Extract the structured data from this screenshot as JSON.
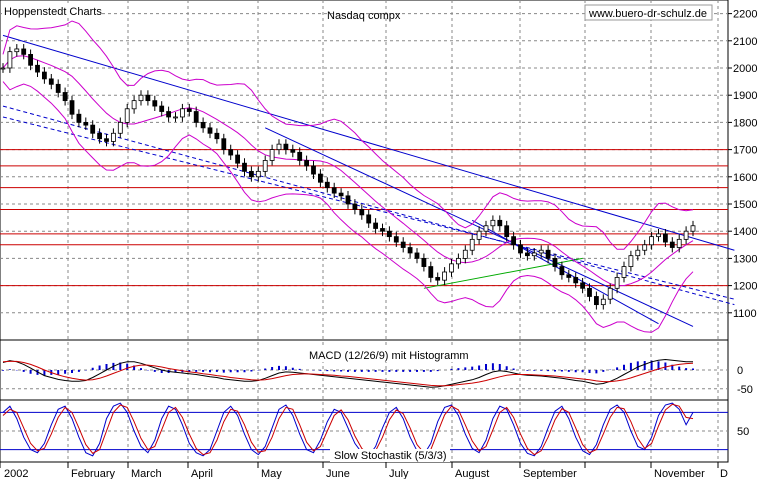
{
  "header": {
    "source": "Hoppenstedt Charts",
    "title": "Nasdaq compx",
    "website": "www.buero-dr-schulz.de"
  },
  "colors": {
    "price": "#000000",
    "bollinger": "#cc00cc",
    "trendline": "#0000cc",
    "channel_dashed": "#0000cc",
    "horizontal_levels": "#cc0000",
    "green_line": "#00aa00",
    "macd": "#000000",
    "signal": "#cc0000",
    "histogram": "#0000cc",
    "stoch_k": "#0000cc",
    "stoch_d": "#cc0000",
    "grid": "#888888"
  },
  "chart_data": [
    {
      "type": "line",
      "name": "price-panel",
      "title": "Nasdaq compx",
      "x_labels": [
        "2002",
        "February",
        "March",
        "April",
        "May",
        "June",
        "July",
        "August",
        "September",
        "November",
        "D"
      ],
      "ylim": [
        1000,
        2250
      ],
      "yticks": [
        1100,
        1200,
        1300,
        1400,
        1500,
        1600,
        1700,
        1800,
        1900,
        2000,
        2100,
        2200
      ],
      "resistance_levels": [
        1200,
        1350,
        1390,
        1480,
        1560,
        1640,
        1700
      ],
      "series": [
        {
          "values": [
            2000,
            2060,
            2070,
            2050,
            2010,
            1985,
            1960,
            1940,
            1910,
            1880,
            1830,
            1800,
            1790,
            1760,
            1740,
            1730,
            1760,
            1800,
            1850,
            1880,
            1900,
            1880,
            1860,
            1840,
            1820,
            1820,
            1850,
            1840,
            1800,
            1780,
            1760,
            1740,
            1700,
            1680,
            1650,
            1620,
            1600,
            1620,
            1660,
            1700,
            1720,
            1700,
            1690,
            1660,
            1640,
            1610,
            1580,
            1560,
            1540,
            1530,
            1500,
            1480,
            1460,
            1430,
            1410,
            1400,
            1380,
            1360,
            1340,
            1320,
            1300,
            1270,
            1230,
            1220,
            1250,
            1280,
            1300,
            1330,
            1370,
            1400,
            1420,
            1440,
            1420,
            1380,
            1350,
            1320,
            1310,
            1320,
            1330,
            1300,
            1270,
            1240,
            1230,
            1210,
            1190,
            1160,
            1130,
            1150,
            1190,
            1230,
            1270,
            1310,
            1330,
            1350,
            1380,
            1390,
            1360,
            1340,
            1370,
            1400,
            1420
          ]
        }
      ]
    },
    {
      "type": "bar",
      "name": "macd-panel",
      "title": "MACD (12/26/9) mit Histogramm",
      "ylim": [
        -80,
        80
      ],
      "yticks": [
        0,
        -50
      ],
      "series": [
        {
          "values": [
            20,
            25,
            22,
            15,
            5,
            -5,
            -15,
            -20,
            -25,
            -28,
            -30,
            -30,
            -28,
            -20,
            -10,
            0,
            10,
            18,
            22,
            22,
            18,
            12,
            6,
            0,
            -4,
            -6,
            -8,
            -10,
            -12,
            -15,
            -18,
            -20,
            -24,
            -26,
            -28,
            -30,
            -30,
            -28,
            -22,
            -15,
            -8,
            -5,
            -6,
            -8,
            -10,
            -12,
            -14,
            -16,
            -18,
            -20,
            -22,
            -24,
            -26,
            -28,
            -30,
            -32,
            -34,
            -36,
            -38,
            -40,
            -42,
            -44,
            -46,
            -45,
            -42,
            -38,
            -34,
            -30,
            -26,
            -20,
            -12,
            -5,
            -2,
            -4,
            -8,
            -12,
            -14,
            -15,
            -16,
            -18,
            -20,
            -22,
            -25,
            -28,
            -30,
            -34,
            -38,
            -36,
            -30,
            -22,
            -12,
            -2,
            8,
            15,
            22,
            26,
            28,
            26,
            24,
            22,
            22
          ]
        },
        {
          "values": [
            22,
            23,
            23,
            20,
            15,
            8,
            0,
            -7,
            -13,
            -18,
            -22,
            -25,
            -27,
            -26,
            -22,
            -16,
            -9,
            -2,
            5,
            10,
            13,
            13,
            11,
            8,
            4,
            1,
            -2,
            -5,
            -7,
            -10,
            -12,
            -15,
            -17,
            -20,
            -22,
            -24,
            -26,
            -27,
            -26,
            -23,
            -19,
            -15,
            -12,
            -11,
            -10,
            -11,
            -12,
            -13,
            -14,
            -16,
            -17,
            -19,
            -21,
            -23,
            -25,
            -27,
            -29,
            -31,
            -33,
            -35,
            -37,
            -39,
            -41,
            -42,
            -42,
            -41,
            -39,
            -37,
            -35,
            -32,
            -28,
            -23,
            -18,
            -14,
            -12,
            -12,
            -12,
            -13,
            -14,
            -15,
            -16,
            -18,
            -20,
            -22,
            -24,
            -26,
            -29,
            -31,
            -31,
            -29,
            -26,
            -21,
            -15,
            -9,
            -3,
            3,
            8,
            12,
            15,
            17,
            18
          ]
        },
        {
          "values": [
            -2,
            2,
            -1,
            -5,
            -10,
            -13,
            -15,
            -13,
            -12,
            -10,
            -8,
            -5,
            -1,
            6,
            12,
            16,
            19,
            20,
            17,
            12,
            5,
            -1,
            -5,
            -8,
            -8,
            -7,
            -6,
            -5,
            -5,
            -5,
            -6,
            -5,
            -7,
            -6,
            -6,
            -6,
            -4,
            -1,
            4,
            8,
            11,
            10,
            6,
            3,
            0,
            -1,
            -2,
            -3,
            -4,
            -4,
            -5,
            -5,
            -5,
            -5,
            -5,
            -5,
            -5,
            -5,
            -5,
            -5,
            -5,
            -5,
            -5,
            -3,
            0,
            3,
            5,
            7,
            9,
            12,
            16,
            18,
            16,
            10,
            4,
            0,
            -2,
            -2,
            -2,
            -3,
            -4,
            -4,
            -5,
            -6,
            -6,
            -8,
            -9,
            -5,
            1,
            7,
            14,
            19,
            23,
            24,
            25,
            23,
            20,
            14,
            9,
            5,
            4
          ]
        }
      ]
    },
    {
      "type": "line",
      "name": "stochastic-panel",
      "title": "Slow Stochastik (5/3/3)",
      "ylim": [
        0,
        100
      ],
      "yticks": [
        50
      ],
      "levels": [
        80,
        20
      ],
      "series": [
        {
          "values": [
            80,
            90,
            70,
            40,
            20,
            15,
            30,
            60,
            85,
            90,
            70,
            40,
            15,
            10,
            30,
            70,
            90,
            95,
            80,
            50,
            25,
            15,
            35,
            70,
            90,
            85,
            60,
            30,
            15,
            10,
            20,
            50,
            80,
            90,
            75,
            45,
            20,
            12,
            25,
            55,
            85,
            92,
            75,
            45,
            20,
            15,
            35,
            65,
            85,
            80,
            55,
            30,
            15,
            10,
            25,
            55,
            80,
            88,
            70,
            40,
            18,
            12,
            30,
            65,
            88,
            92,
            75,
            45,
            22,
            15,
            35,
            70,
            90,
            85,
            60,
            30,
            14,
            10,
            25,
            55,
            82,
            90,
            70,
            40,
            18,
            12,
            28,
            60,
            85,
            92,
            80,
            50,
            25,
            20,
            40,
            75,
            92,
            95,
            85,
            60,
            80
          ]
        },
        {
          "values": [
            75,
            85,
            80,
            55,
            30,
            18,
            22,
            45,
            72,
            88,
            80,
            55,
            28,
            14,
            20,
            50,
            80,
            92,
            88,
            65,
            38,
            20,
            25,
            52,
            80,
            88,
            72,
            45,
            22,
            12,
            15,
            35,
            65,
            85,
            82,
            60,
            32,
            16,
            18,
            40,
            70,
            88,
            85,
            60,
            32,
            18,
            25,
            50,
            75,
            84,
            68,
            42,
            22,
            12,
            18,
            40,
            68,
            84,
            78,
            55,
            28,
            15,
            20,
            48,
            76,
            90,
            84,
            60,
            34,
            18,
            25,
            52,
            80,
            88,
            72,
            45,
            22,
            12,
            18,
            40,
            68,
            86,
            80,
            55,
            28,
            15,
            20,
            45,
            72,
            88,
            86,
            65,
            38,
            22,
            30,
            58,
            84,
            93,
            90,
            72,
            70
          ]
        }
      ]
    }
  ]
}
